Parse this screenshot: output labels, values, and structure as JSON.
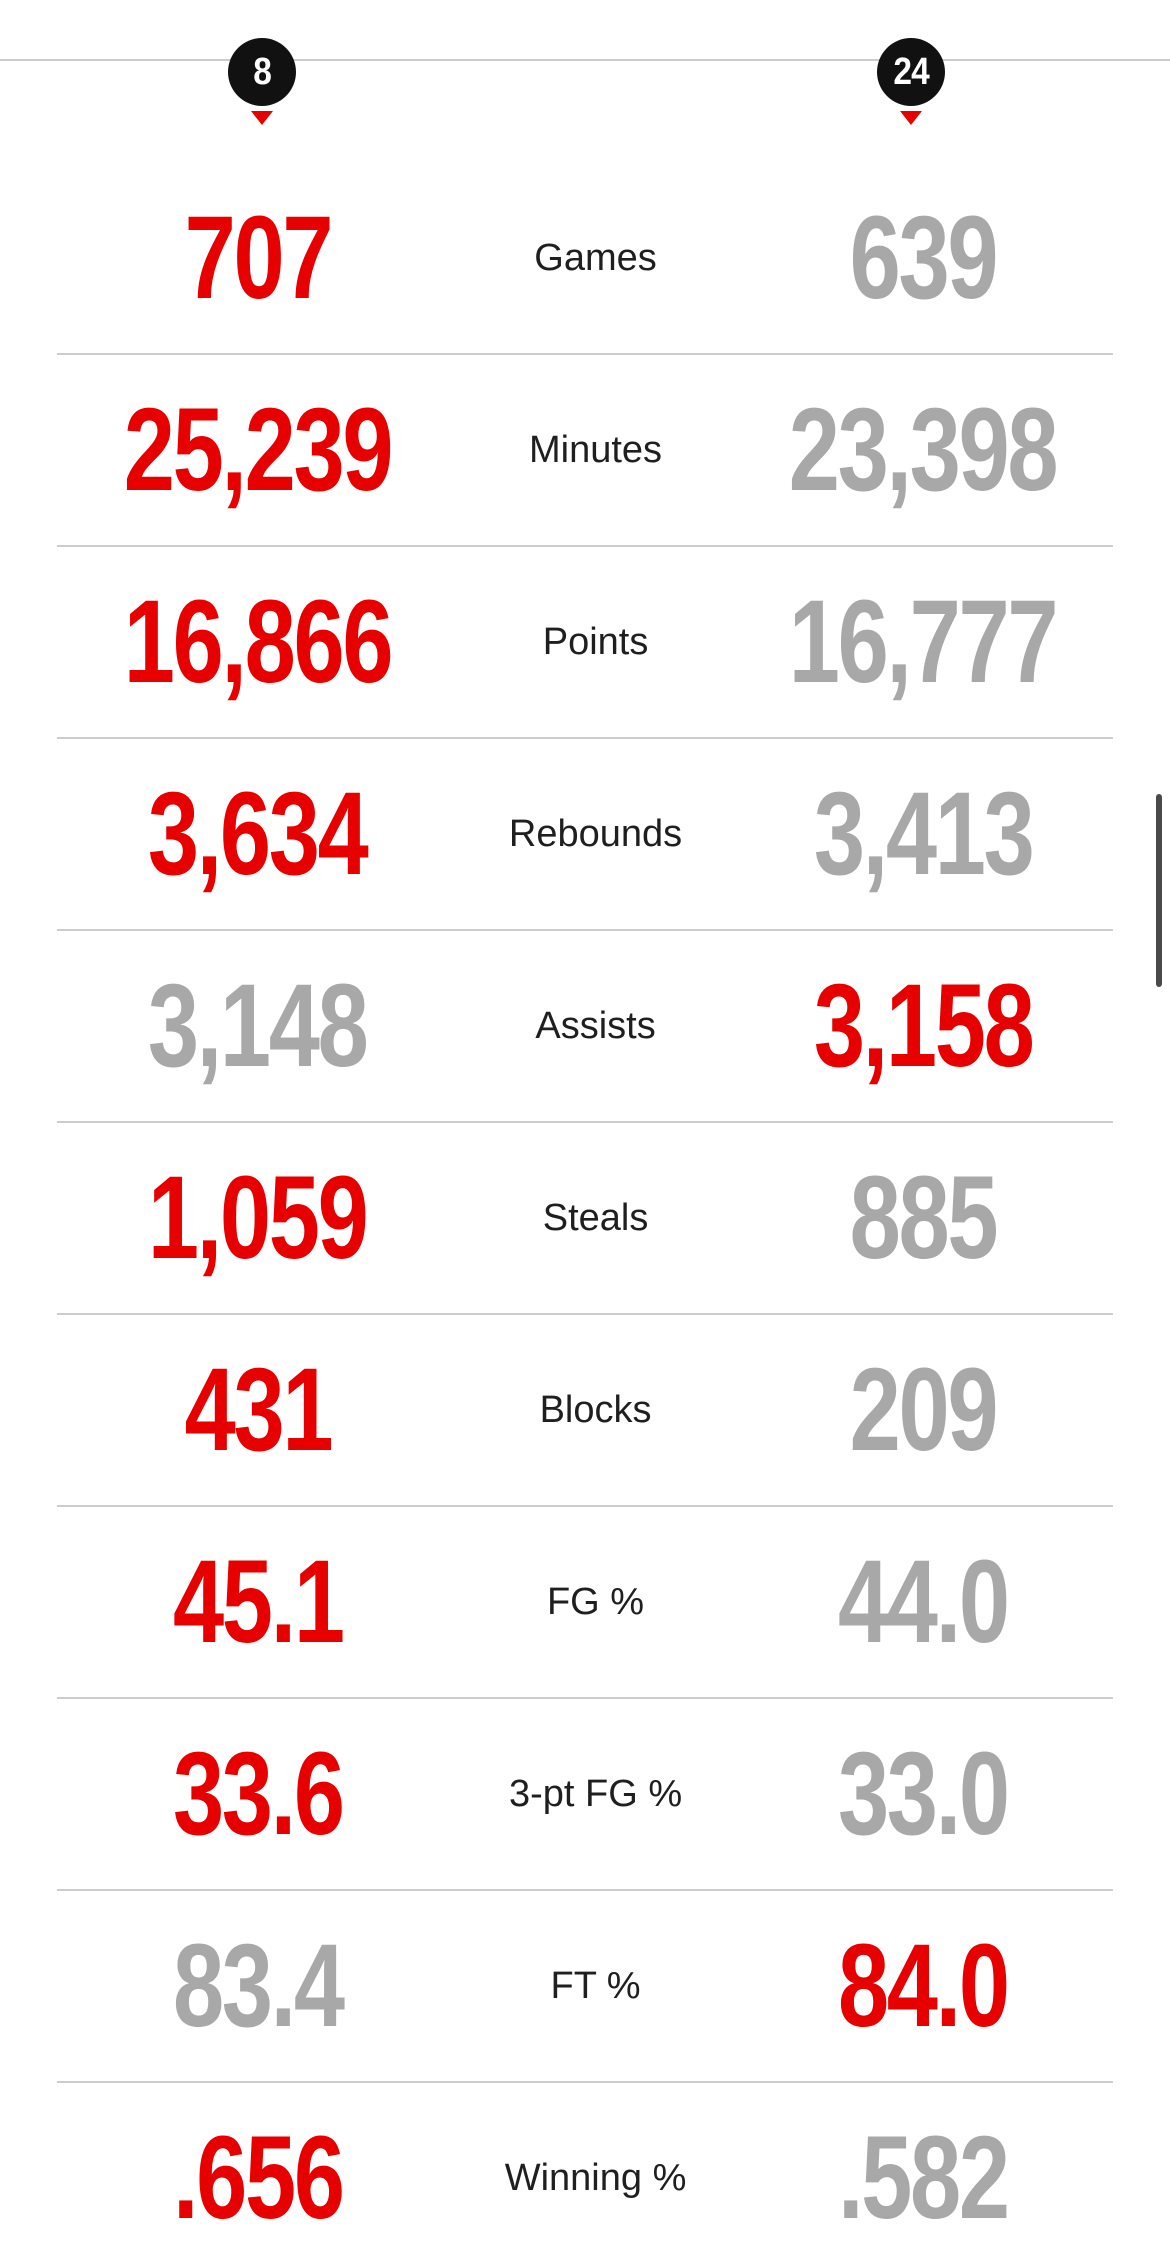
{
  "colors": {
    "red": "#e60000",
    "gray": "#a8a8a8",
    "labelcolor": "#1f1f1f",
    "divider": "#cccccc",
    "circle": "#111111"
  },
  "header": {
    "left_jersey": "8",
    "right_jersey": "24"
  },
  "icons": {
    "marker": "triangle-down"
  },
  "chart_data": {
    "type": "table",
    "rows": [
      {
        "label": "Games",
        "left": "707",
        "right": "639",
        "red_side": "left"
      },
      {
        "label": "Minutes",
        "left": "25,239",
        "right": "23,398",
        "red_side": "left"
      },
      {
        "label": "Points",
        "left": "16,866",
        "right": "16,777",
        "red_side": "left"
      },
      {
        "label": "Rebounds",
        "left": "3,634",
        "right": "3,413",
        "red_side": "left"
      },
      {
        "label": "Assists",
        "left": "3,148",
        "right": "3,158",
        "red_side": "right"
      },
      {
        "label": "Steals",
        "left": "1,059",
        "right": "885",
        "red_side": "left"
      },
      {
        "label": "Blocks",
        "left": "431",
        "right": "209",
        "red_side": "left"
      },
      {
        "label": "FG %",
        "left": "45.1",
        "right": "44.0",
        "red_side": "left"
      },
      {
        "label": "3-pt FG %",
        "left": "33.6",
        "right": "33.0",
        "red_side": "left"
      },
      {
        "label": "FT %",
        "left": "83.4",
        "right": "84.0",
        "red_side": "right"
      },
      {
        "label": "Winning %",
        "left": ".656",
        "right": ".582",
        "red_side": "left"
      }
    ]
  }
}
